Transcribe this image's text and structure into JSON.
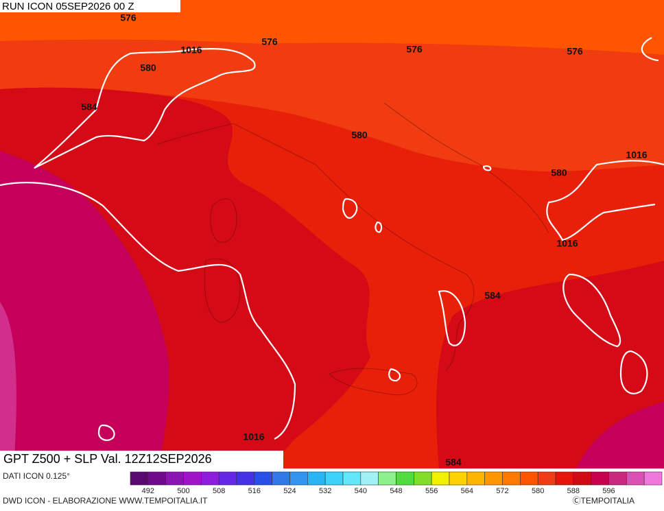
{
  "header": {
    "run": "RUN ICON 05SEP2026 00 Z",
    "title": "GPT Z500 + SLP Val. 12Z12SEP2026"
  },
  "footer": {
    "source": "DATI ICON 0.125°",
    "credits": "DWD ICON - ELABORAZIONE WWW.TEMPOITALIA.IT",
    "copyright": "ⒸTEMPOITALIA"
  },
  "contour_labels": [
    "576",
    "576",
    "576",
    "576",
    "580",
    "580",
    "580",
    "584",
    "584",
    "584",
    "1016",
    "1016",
    "1016",
    "1016"
  ],
  "legend": {
    "ticks": [
      492,
      500,
      508,
      516,
      524,
      532,
      540,
      548,
      556,
      564,
      572,
      580,
      588,
      596
    ],
    "colors": [
      "#5a0a6e",
      "#700a8c",
      "#8c14b4",
      "#a014c8",
      "#8c1edc",
      "#6428e6",
      "#4632e6",
      "#2850e6",
      "#3278e6",
      "#3296f0",
      "#28b4f5",
      "#3cd2fa",
      "#64e6fa",
      "#a0f0f5",
      "#8cf08c",
      "#50dc3c",
      "#82dc28",
      "#f0f000",
      "#ffd200",
      "#ffb400",
      "#ff9600",
      "#ff7800",
      "#ff5500",
      "#f03c14",
      "#e6140a",
      "#d20a14",
      "#c8004b",
      "#c8287d",
      "#dc50b4",
      "#f078dc"
    ]
  }
}
